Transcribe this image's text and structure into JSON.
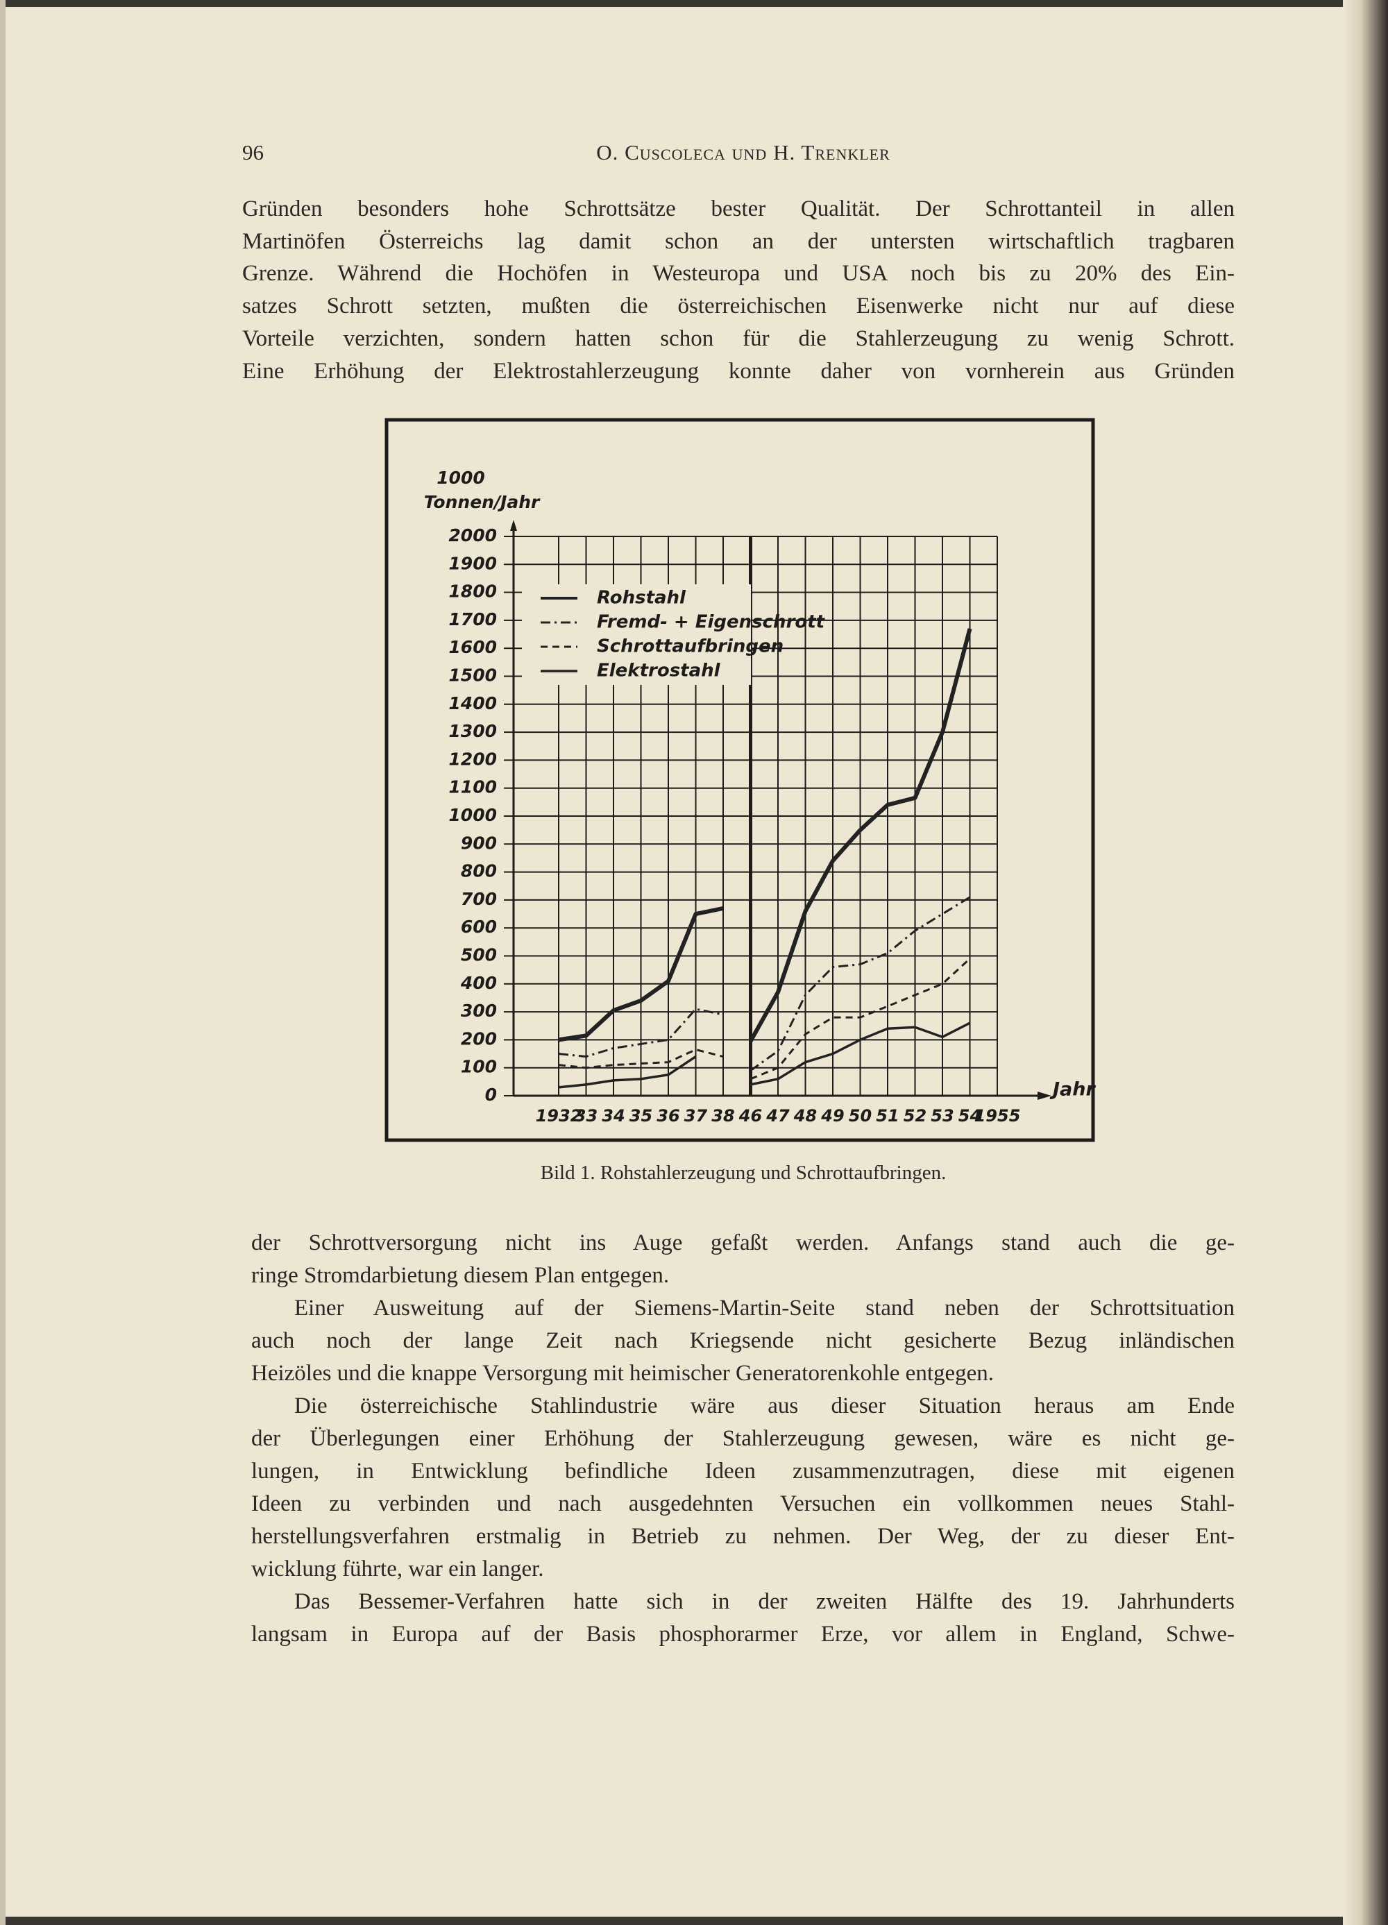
{
  "header": {
    "page_number": "96",
    "running_title": "O. Cuscoleca und H. Trenkler"
  },
  "body_top": {
    "paragraphs": [
      {
        "lines": [
          "Gründen besonders hohe Schrottsätze bester Qualität. Der Schrottanteil in allen",
          "Martinöfen Österreichs lag damit schon an der untersten wirtschaftlich tragbaren",
          "Grenze. Während die Hochöfen in Westeuropa und USA noch bis zu 20% des Ein-",
          "satzes Schrott setzten, mußten die österreichischen Eisenwerke nicht nur auf diese",
          "Vorteile verzichten, sondern hatten schon für die Stahlerzeugung zu wenig Schrott.",
          "Eine Erhöhung der Elektrostahlerzeugung konnte daher von vornherein aus Gründen"
        ]
      }
    ]
  },
  "chart_data": {
    "type": "line",
    "y_unit": "1000",
    "y_label": "Tonnen/Jahr",
    "x_label": "Jahr",
    "categories": [
      "1932",
      "33",
      "34",
      "35",
      "36",
      "37",
      "38",
      "46",
      "47",
      "48",
      "49",
      "50",
      "51",
      "52",
      "53",
      "54",
      "1955"
    ],
    "x_break_index": 7,
    "ylim": [
      0,
      2000
    ],
    "yticks": [
      0,
      100,
      200,
      300,
      400,
      500,
      600,
      700,
      800,
      900,
      1000,
      1100,
      1200,
      1300,
      1400,
      1500,
      1600,
      1700,
      1800,
      1900,
      2000
    ],
    "grid": true,
    "series": [
      {
        "name": "Rohstahl",
        "color": "#222222",
        "style": "solid-bold",
        "values": [
          200,
          215,
          305,
          340,
          410,
          650,
          670,
          195,
          370,
          660,
          840,
          950,
          1040,
          1065,
          1300,
          1670,
          null
        ]
      },
      {
        "name": "Fremd- + Eigenschrott",
        "color": "#222222",
        "style": "dashdot",
        "values": [
          150,
          140,
          170,
          185,
          200,
          310,
          290,
          90,
          160,
          360,
          460,
          470,
          510,
          590,
          650,
          710,
          null
        ]
      },
      {
        "name": "Schrottaufbringen",
        "color": "#222222",
        "style": "dashed",
        "values": [
          110,
          100,
          110,
          115,
          120,
          165,
          140,
          60,
          100,
          220,
          280,
          280,
          320,
          360,
          400,
          490,
          null
        ]
      },
      {
        "name": "Elektrostahl",
        "color": "#222222",
        "style": "solid",
        "values": [
          30,
          40,
          55,
          60,
          75,
          140,
          null,
          40,
          60,
          120,
          150,
          200,
          240,
          245,
          210,
          260,
          null
        ]
      }
    ]
  },
  "caption": "Bild 1. Rohstahlerzeugung und Schrottaufbringen.",
  "body_bottom": {
    "paragraphs": [
      {
        "lines": [
          "der Schrottversorgung nicht ins Auge gefaßt werden. Anfangs stand auch die ge-",
          "ringe Stromdarbietung diesem Plan entgegen."
        ]
      },
      {
        "lines": [
          "Einer Ausweitung auf der Siemens-Martin-Seite stand neben der Schrottsituation",
          "auch noch der lange Zeit nach Kriegsende nicht gesicherte Bezug inländischen",
          "Heizöles und die knappe Versorgung mit heimischer Generatorenkohle entgegen."
        ]
      },
      {
        "lines": [
          "Die österreichische Stahlindustrie wäre aus dieser Situation heraus am Ende",
          "der Überlegungen einer Erhöhung der Stahlerzeugung gewesen, wäre es nicht ge-",
          "lungen, in Entwicklung befindliche Ideen zusammenzutragen, diese mit eigenen",
          "Ideen zu verbinden und nach ausgedehnten Versuchen ein vollkommen neues Stahl-",
          "herstellungsverfahren erstmalig in Betrieb zu nehmen. Der Weg, der zu dieser Ent-",
          "wicklung führte, war ein langer."
        ]
      },
      {
        "lines": [
          "Das Bessemer-Verfahren hatte sich in der zweiten Hälfte des 19. Jahrhunderts",
          "langsam in Europa auf der Basis phosphorarmer Erze, vor allem in England, Schwe-"
        ]
      }
    ]
  }
}
